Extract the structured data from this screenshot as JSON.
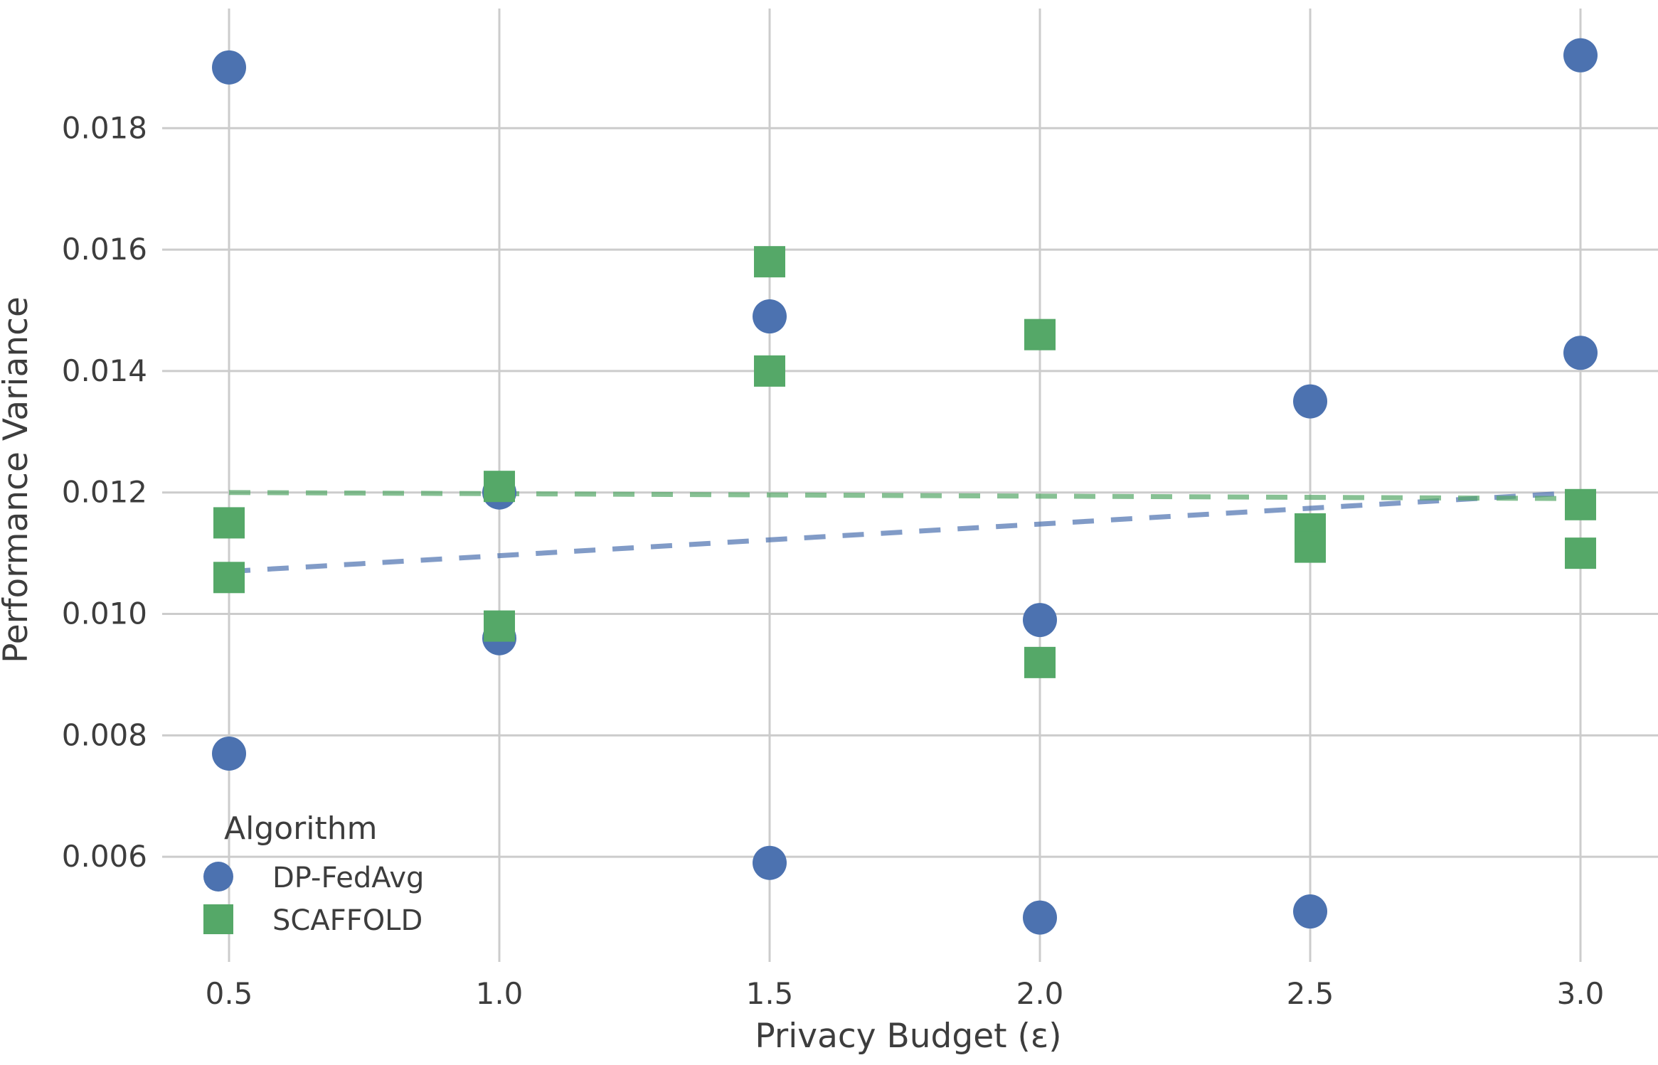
{
  "chart_data": {
    "type": "scatter",
    "title": "",
    "xlabel": "Privacy Budget (ε)",
    "ylabel": "Performance Variance",
    "x_tick_values": [
      0.5,
      1.0,
      1.5,
      2.0,
      2.5,
      3.0
    ],
    "x_tick_labels": [
      "0.5",
      "1.0",
      "1.5",
      "2.0",
      "2.5",
      "3.0"
    ],
    "y_tick_values": [
      0.006,
      0.008,
      0.01,
      0.012,
      0.014,
      0.016,
      0.018
    ],
    "y_tick_labels": [
      "0.006",
      "0.008",
      "0.010",
      "0.012",
      "0.014",
      "0.016",
      "0.018"
    ],
    "xlim": [
      0.3763,
      3.1434
    ],
    "ylim": [
      0.00448,
      0.01997
    ],
    "grid": true,
    "legend": {
      "title": "Algorithm",
      "location": "lower-left",
      "frame": false
    },
    "colors": {
      "grid": "#cccccc",
      "text": "#3d3d3d",
      "background": "#ffffff",
      "dp_fedavg": "#4c72b0",
      "scaffold": "#55a868"
    },
    "series": [
      {
        "name": "DP-FedAvg",
        "marker": "circle",
        "color": "#4c72b0",
        "points": [
          [
            0.5,
            0.019
          ],
          [
            0.5,
            0.0077
          ],
          [
            1.0,
            0.012
          ],
          [
            1.0,
            0.0096
          ],
          [
            1.5,
            0.0149
          ],
          [
            1.5,
            0.0059
          ],
          [
            2.0,
            0.0099
          ],
          [
            2.0,
            0.005
          ],
          [
            2.5,
            0.0135
          ],
          [
            2.5,
            0.0051
          ],
          [
            3.0,
            0.0192
          ],
          [
            3.0,
            0.0143
          ]
        ]
      },
      {
        "name": "SCAFFOLD",
        "marker": "square",
        "color": "#55a868",
        "points": [
          [
            0.5,
            0.0115
          ],
          [
            0.5,
            0.0106
          ],
          [
            1.0,
            0.0121
          ],
          [
            1.0,
            0.0098
          ],
          [
            1.5,
            0.0158
          ],
          [
            1.5,
            0.014
          ],
          [
            2.0,
            0.0146
          ],
          [
            2.0,
            0.0092
          ],
          [
            2.5,
            0.0114
          ],
          [
            2.5,
            0.0111
          ],
          [
            3.0,
            0.0118
          ],
          [
            3.0,
            0.011
          ]
        ]
      }
    ],
    "trend_lines": [
      {
        "series": "DP-FedAvg",
        "style": "dashed",
        "color": "#4c72b0",
        "from": [
          0.5,
          0.0107
        ],
        "to": [
          3.0,
          0.012
        ]
      },
      {
        "series": "SCAFFOLD",
        "style": "dashed",
        "color": "#55a868",
        "from": [
          0.5,
          0.012
        ],
        "to": [
          3.0,
          0.0119
        ]
      }
    ]
  }
}
